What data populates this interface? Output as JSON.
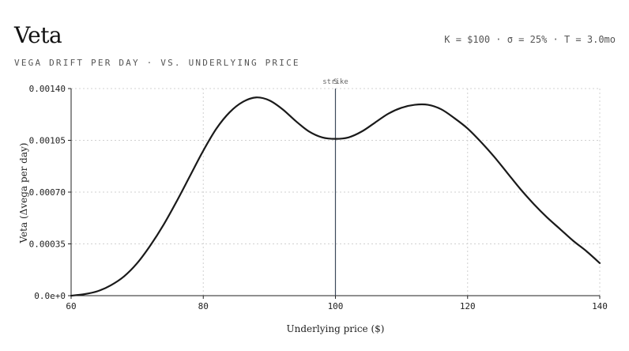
{
  "header": {
    "title": "Veta",
    "subtitle": "VEGA DRIFT PER DAY · VS. UNDERLYING PRICE",
    "params": "K = $100 · σ = 25% · T = 3.0mo"
  },
  "chart_data": {
    "type": "line",
    "title": "Veta",
    "subtitle": "VEGA DRIFT PER DAY · VS. UNDERLYING PRICE",
    "xlabel": "Underlying price ($)",
    "ylabel": "Veta (Δvega per day)",
    "xlim": [
      60,
      140
    ],
    "ylim": [
      0,
      0.0014
    ],
    "xticks": [
      60,
      80,
      100,
      120,
      140
    ],
    "xtick_labels": [
      "60",
      "80",
      "100",
      "120",
      "140"
    ],
    "yticks": [
      0,
      0.00035,
      0.0007,
      0.00105,
      0.0014
    ],
    "ytick_labels": [
      "0.0e+0",
      "0.00035",
      "0.00070",
      "0.00105",
      "0.00140"
    ],
    "grid": true,
    "strike": {
      "x": 100,
      "label": "strike",
      "marker": "S"
    },
    "colors": {
      "line": "#1a1a1a",
      "strike": "#3d4a5c",
      "grid": "#d0d0d0"
    },
    "series": [
      {
        "x": [
          60,
          62,
          64,
          66,
          68,
          70,
          72,
          74,
          76,
          78,
          80,
          82,
          84,
          86,
          88,
          90,
          92,
          94,
          96,
          98,
          100,
          102,
          104,
          106,
          108,
          110,
          112,
          114,
          116,
          118,
          120,
          122,
          124,
          126,
          128,
          130,
          132,
          134,
          136,
          138,
          140
        ],
        "y": [
          0.0,
          1e-05,
          3e-05,
          7e-05,
          0.00013,
          0.00022,
          0.00034,
          0.00048,
          0.00064,
          0.00081,
          0.00098,
          0.00113,
          0.00124,
          0.00131,
          0.00134,
          0.00132,
          0.00126,
          0.00118,
          0.00111,
          0.00107,
          0.00106,
          0.00107,
          0.00111,
          0.00117,
          0.00123,
          0.00127,
          0.00129,
          0.00129,
          0.00126,
          0.0012,
          0.00113,
          0.00104,
          0.00094,
          0.00083,
          0.00072,
          0.00062,
          0.00053,
          0.00045,
          0.00037,
          0.0003,
          0.00022
        ]
      }
    ]
  }
}
